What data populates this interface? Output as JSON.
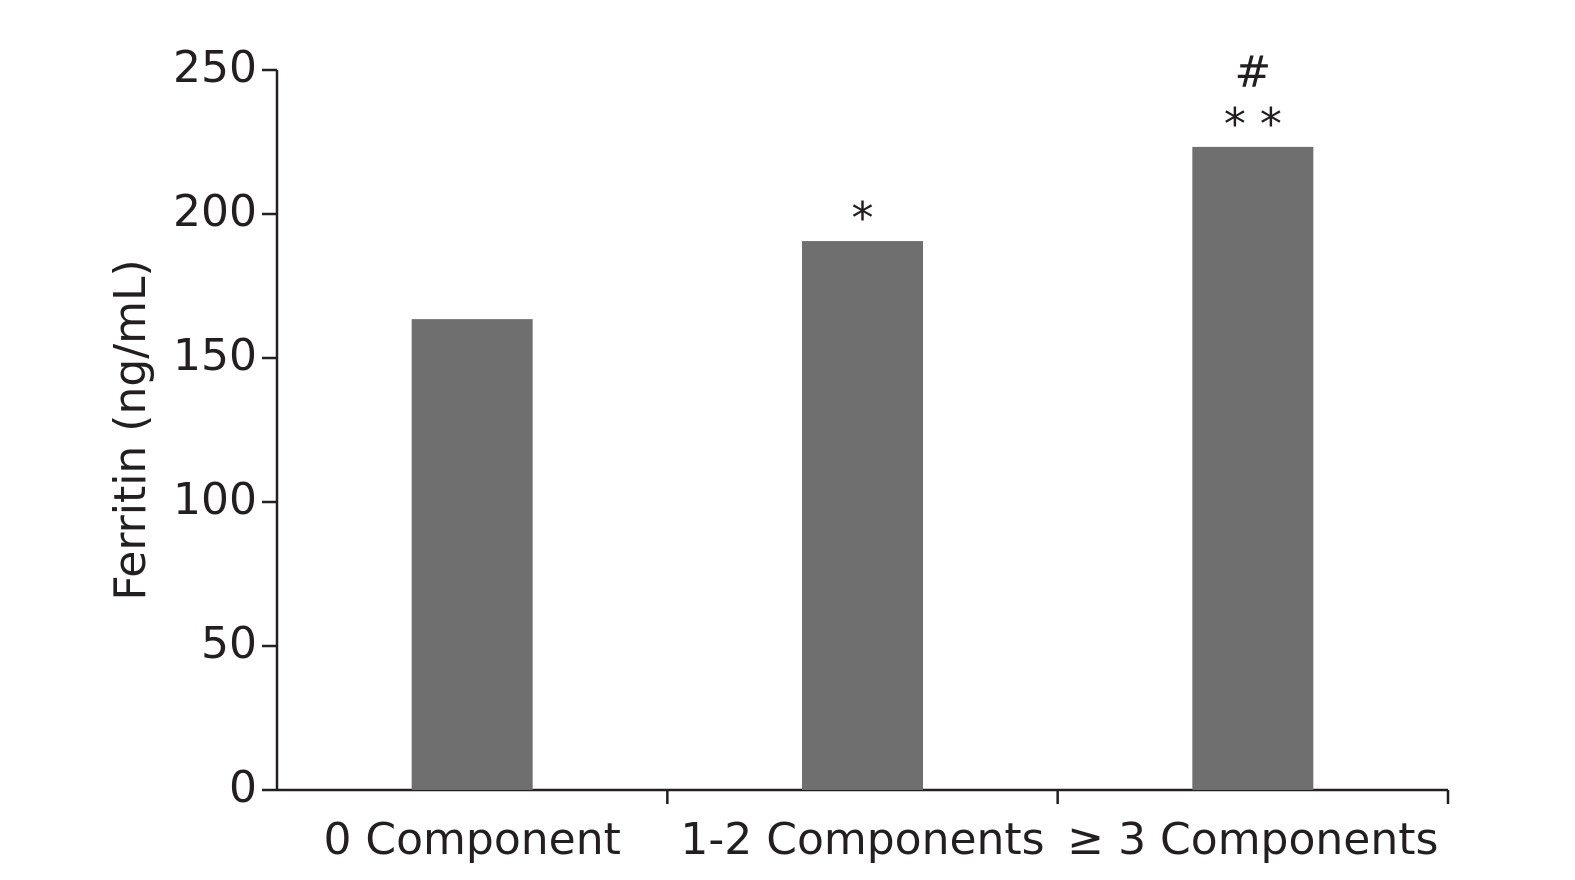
{
  "chart_data": {
    "type": "bar",
    "y_label": "Ferritin (ng/mL)",
    "categories": [
      "0 Component",
      "1-2 Components",
      "≥ 3 Components"
    ],
    "values": [
      163.5,
      190.6,
      223.3
    ],
    "color": "#706f6f",
    "annotations": [
      [],
      [
        "*"
      ],
      [
        "* *",
        "#"
      ]
    ],
    "ylim": [
      0,
      250
    ],
    "yticks": [
      0,
      50,
      100,
      150,
      200,
      250
    ],
    "grid": false
  }
}
